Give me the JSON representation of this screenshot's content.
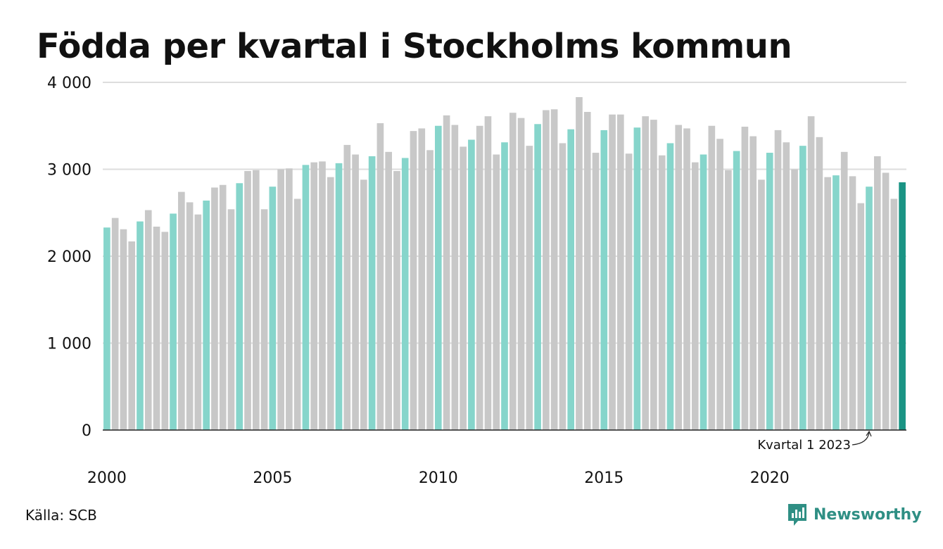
{
  "header": {
    "title": "Födda per kvartal i Stockholms kommun"
  },
  "footer": {
    "source": "Källa: SCB",
    "brand": "Newsworthy"
  },
  "colors": {
    "q1": "#86d5cb",
    "other": "#c8c8c8",
    "latest": "#1a9484",
    "grid": "#dddddd",
    "axis": "#222222"
  },
  "chart_data": {
    "type": "bar",
    "title": "Födda per kvartal i Stockholms kommun",
    "xlabel": "",
    "ylabel": "",
    "ylim": [
      0,
      4000
    ],
    "yticks": [
      0,
      1000,
      2000,
      3000,
      4000
    ],
    "ytick_labels": [
      "0",
      "1 000",
      "2 000",
      "3 000",
      "4 000"
    ],
    "xtick_labels": [
      "2000",
      "2005",
      "2010",
      "2015",
      "2020"
    ],
    "grid": true,
    "annotation": "Kvartal 1 2023",
    "series": [
      {
        "start": "2000 Q1",
        "values": [
          2330,
          2440,
          2310,
          2170,
          2400,
          2530,
          2340,
          2280,
          2490,
          2740,
          2620,
          2480,
          2640,
          2790,
          2820,
          2540,
          2840,
          2980,
          2990,
          2540,
          2800,
          3000,
          3010,
          2660,
          3050,
          3080,
          3090,
          2910,
          3070,
          3280,
          3170,
          2880,
          3150,
          3530,
          3200,
          2980,
          3130,
          3440,
          3470,
          3220,
          3500,
          3620,
          3510,
          3260,
          3340,
          3500,
          3610,
          3170,
          3310,
          3650,
          3590,
          3270,
          3520,
          3680,
          3690,
          3300,
          3460,
          3830,
          3660,
          3190,
          3450,
          3630,
          3630,
          3180,
          3480,
          3610,
          3570,
          3160,
          3300,
          3510,
          3470,
          3080,
          3170,
          3500,
          3350,
          2990,
          3210,
          3490,
          3380,
          2880,
          3190,
          3450,
          3310,
          3000,
          3270,
          3610,
          3370,
          2910,
          2930,
          3200,
          2920,
          2610,
          2800,
          3150,
          2960,
          2660,
          2850
        ]
      }
    ]
  }
}
